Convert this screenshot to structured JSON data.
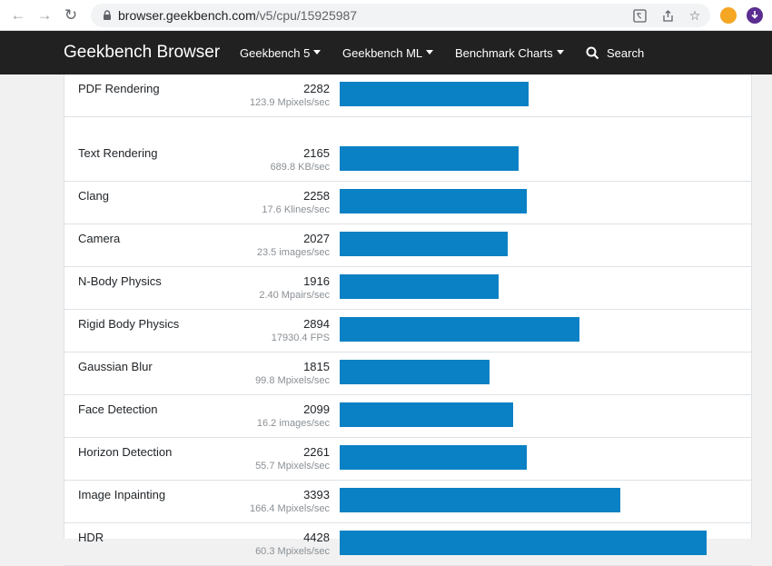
{
  "browser": {
    "url_host": "browser.geekbench.com",
    "url_path": "/v5/cpu/15925987"
  },
  "navbar": {
    "brand": "Geekbench Browser",
    "items": [
      {
        "label": "Geekbench 5",
        "dropdown": true
      },
      {
        "label": "Geekbench ML",
        "dropdown": true
      },
      {
        "label": "Benchmark Charts",
        "dropdown": true
      },
      {
        "label": "Search",
        "dropdown": false
      }
    ]
  },
  "colors": {
    "bar": "#0a81c4",
    "navbar_bg": "#212121"
  },
  "chart_data": {
    "type": "bar",
    "orientation": "horizontal",
    "categories": [
      "PDF Rendering",
      "Text Rendering",
      "Clang",
      "Camera",
      "N-Body Physics",
      "Rigid Body Physics",
      "Gaussian Blur",
      "Face Detection",
      "Horizon Detection",
      "Image Inpainting",
      "HDR"
    ],
    "values": [
      2282,
      2165,
      2258,
      2027,
      1916,
      2894,
      1815,
      2099,
      2261,
      3393,
      4428
    ],
    "throughput": [
      "123.9 Mpixels/sec",
      "689.8 KB/sec",
      "17.6 Klines/sec",
      "23.5 images/sec",
      "2.40 Mpairs/sec",
      "17930.4 FPS",
      "99.8 Mpixels/sec",
      "16.2 images/sec",
      "55.7 Mpixels/sec",
      "166.4 Mpixels/sec",
      "60.3 Mpixels/sec"
    ]
  }
}
